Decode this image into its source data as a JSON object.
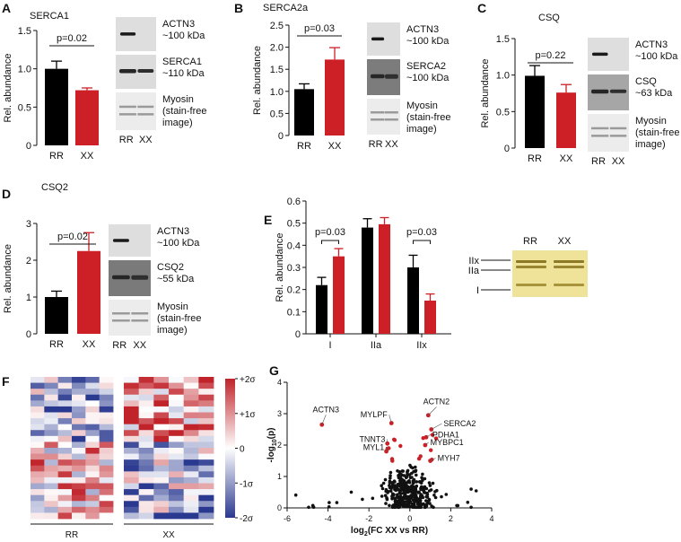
{
  "figure": {
    "panels": {
      "A": {
        "letter": "A",
        "title": "SERCA1",
        "y_label": "Rel. abundance",
        "p_label": "p=0.02",
        "blot_labels": [
          [
            "ACTN3",
            "~100 kDa"
          ],
          [
            "SERCA1",
            "~110 kDa"
          ],
          [
            "Myosin",
            "(stain-free",
            "image)"
          ]
        ],
        "lane_labels": [
          "RR",
          "XX"
        ]
      },
      "B": {
        "letter": "B",
        "title": "SERCA2a",
        "y_label": "Rel. abundance",
        "p_label": "p=0.03",
        "blot_labels": [
          [
            "ACTN3",
            "~100 kDa"
          ],
          [
            "SERCA2",
            "~100 kDa"
          ],
          [
            "Myosin",
            "(stain-free",
            "image)"
          ]
        ],
        "lane_labels": [
          "RR",
          "XX"
        ]
      },
      "C": {
        "letter": "C",
        "title": "CSQ",
        "y_label": "Rel. abundance",
        "p_label": "p=0.22",
        "blot_labels": [
          [
            "ACTN3",
            "~100 kDa"
          ],
          [
            "CSQ",
            "~63 kDa"
          ],
          [
            "Myosin",
            "(stain-free",
            "image)"
          ]
        ],
        "lane_labels": [
          "RR",
          "XX"
        ]
      },
      "D": {
        "letter": "D",
        "title": "CSQ2",
        "y_label": "Rel. abundance",
        "p_label": "p=0.02",
        "blot_labels": [
          [
            "ACTN3",
            "~100 kDa"
          ],
          [
            "CSQ2",
            "~55 kDa"
          ],
          [
            "Myosin",
            "(stain-free",
            "image)"
          ]
        ],
        "lane_labels": [
          "RR",
          "XX"
        ]
      },
      "E": {
        "letter": "E",
        "y_label": "Rel. abundance",
        "p_labels": [
          "p=0.03",
          "p=0.03"
        ],
        "gel_lane_labels": [
          "RR",
          "XX"
        ],
        "gel_band_labels": [
          "IIx",
          "IIa",
          "I"
        ]
      },
      "F": {
        "letter": "F",
        "group_labels": [
          "RR",
          "XX"
        ],
        "colorbar_ticks": [
          "+2σ",
          "+1σ",
          "0",
          "-1σ",
          "-2σ"
        ]
      },
      "G": {
        "letter": "G",
        "x_label_main": "log",
        "x_label_sub": "2",
        "x_label_rest": "(FC XX vs RR)",
        "y_label_main": "-log",
        "y_label_sub": "10",
        "y_label_rest": "(p)",
        "protein_labels": [
          "ACTN3",
          "ACTN2",
          "MYLPF",
          "SERCA2",
          "PDHA1",
          "TNNT3",
          "MYBPC1",
          "MYL1",
          "MYH7"
        ]
      }
    },
    "colors": {
      "rr": "#000000",
      "xx": "#cc1f26",
      "heat_high": "#c0232a",
      "heat_low": "#2a3990",
      "gel": "#efe39a"
    }
  },
  "chart_data": [
    {
      "panel": "A",
      "type": "bar",
      "title": "SERCA1",
      "categories": [
        "RR",
        "XX"
      ],
      "values": [
        1.0,
        0.72
      ],
      "errors": [
        0.1,
        0.03
      ],
      "ylim": [
        0,
        1.5
      ],
      "yticks": [
        0,
        0.5,
        1.0,
        1.5
      ],
      "ytick_labels": [
        "0",
        "0.5",
        "1.0",
        "1.5"
      ],
      "ylabel": "Rel. abundance"
    },
    {
      "panel": "B",
      "type": "bar",
      "title": "SERCA2a",
      "categories": [
        "RR",
        "XX"
      ],
      "values": [
        1.05,
        1.72
      ],
      "errors": [
        0.12,
        0.27
      ],
      "ylim": [
        0,
        2.5
      ],
      "yticks": [
        0,
        0.5,
        1.0,
        1.5,
        2.0,
        2.5
      ],
      "ytick_labels": [
        "0",
        "0.5",
        "1.0",
        "1.5",
        "2.0",
        "2.5"
      ],
      "ylabel": "Rel. abundance"
    },
    {
      "panel": "C",
      "type": "bar",
      "title": "CSQ",
      "categories": [
        "RR",
        "XX"
      ],
      "values": [
        0.99,
        0.76
      ],
      "errors": [
        0.14,
        0.11
      ],
      "ylim": [
        0,
        1.5
      ],
      "yticks": [
        0,
        0.5,
        1.0,
        1.5
      ],
      "ytick_labels": [
        "0",
        "0.5",
        "1.0",
        "1.5"
      ],
      "ylabel": "Rel. abundance"
    },
    {
      "panel": "D",
      "type": "bar",
      "title": "CSQ2",
      "categories": [
        "RR",
        "XX"
      ],
      "values": [
        1.0,
        2.25
      ],
      "errors": [
        0.16,
        0.5
      ],
      "ylim": [
        0,
        3
      ],
      "yticks": [
        0,
        1,
        2,
        3
      ],
      "ytick_labels": [
        "0",
        "1",
        "2",
        "3"
      ],
      "ylabel": "Rel. abundance"
    },
    {
      "panel": "E",
      "type": "bar",
      "categories": [
        "I",
        "IIa",
        "IIx"
      ],
      "series": [
        {
          "name": "RR",
          "values": [
            0.22,
            0.48,
            0.3
          ],
          "errors": [
            0.035,
            0.04,
            0.055
          ]
        },
        {
          "name": "XX",
          "values": [
            0.35,
            0.495,
            0.15
          ],
          "errors": [
            0.035,
            0.03,
            0.03
          ]
        }
      ],
      "ylim": [
        0,
        0.6
      ],
      "yticks": [
        0,
        0.1,
        0.2,
        0.3,
        0.4,
        0.5,
        0.6
      ],
      "ytick_labels": [
        "0",
        "0.1",
        "0.2",
        "0.3",
        "0.4",
        "0.5",
        "0.6"
      ],
      "ylabel": "Rel. abundance"
    },
    {
      "panel": "F",
      "type": "heatmap",
      "rows": 24,
      "groups": [
        "RR",
        "XX"
      ],
      "columns_per_group": 6,
      "color_range": [
        -2,
        2
      ],
      "seed": 11
    },
    {
      "panel": "G",
      "type": "scatter",
      "xlabel": "log2(FC XX vs RR)",
      "ylabel": "-log10(p)",
      "xlim": [
        -6,
        4
      ],
      "ylim": [
        0,
        4
      ],
      "xticks": [
        -6,
        -4,
        -2,
        0,
        2,
        4
      ],
      "yticks": [
        0,
        1,
        2,
        3,
        4
      ],
      "labeled_points": [
        {
          "name": "ACTN3",
          "x": -4.3,
          "y": 2.65
        },
        {
          "name": "ACTN2",
          "x": 0.9,
          "y": 2.95
        },
        {
          "name": "MYLPF",
          "x": -0.9,
          "y": 2.7
        },
        {
          "name": "SERCA2",
          "x": 1.05,
          "y": 2.5
        },
        {
          "name": "PDHA1",
          "x": 0.8,
          "y": 2.25
        },
        {
          "name": "TNNT3",
          "x": -1.1,
          "y": 2.05
        },
        {
          "name": "MYBPC1",
          "x": 0.75,
          "y": 2.0
        },
        {
          "name": "MYL1",
          "x": -1.15,
          "y": 1.8
        },
        {
          "name": "MYH7",
          "x": 1.0,
          "y": 1.5
        }
      ],
      "other_significant_count": 14,
      "nonsignificant_count": 360,
      "seed": 7
    }
  ]
}
